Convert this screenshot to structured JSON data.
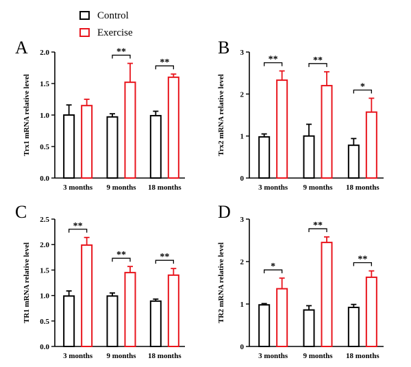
{
  "legend": [
    {
      "label": "Control",
      "color": "#000000"
    },
    {
      "label": "Exercise",
      "color": "#e8141c"
    }
  ],
  "chart_data": [
    {
      "panel": "A",
      "type": "bar",
      "ylabel": "Trx1 mRNA relative level",
      "categories": [
        "3 months",
        "9 months",
        "18 months"
      ],
      "ylim": [
        0,
        2.0
      ],
      "yticks": [
        0.0,
        0.5,
        1.0,
        1.5,
        2.0
      ],
      "series": [
        {
          "name": "Control",
          "values": [
            1.0,
            0.97,
            0.99
          ],
          "errors": [
            0.16,
            0.05,
            0.07
          ]
        },
        {
          "name": "Exercise",
          "values": [
            1.15,
            1.52,
            1.6
          ],
          "errors": [
            0.1,
            0.3,
            0.05
          ]
        }
      ],
      "significance": [
        "",
        "**",
        "**"
      ]
    },
    {
      "panel": "B",
      "type": "bar",
      "ylabel": "Trx2 mRNA relative level",
      "categories": [
        "3 months",
        "9 months",
        "18 months"
      ],
      "ylim": [
        0,
        3
      ],
      "yticks": [
        0,
        1,
        2,
        3
      ],
      "series": [
        {
          "name": "Control",
          "values": [
            0.98,
            1.0,
            0.78
          ],
          "errors": [
            0.07,
            0.28,
            0.16
          ]
        },
        {
          "name": "Exercise",
          "values": [
            2.33,
            2.2,
            1.57
          ],
          "errors": [
            0.22,
            0.33,
            0.33
          ]
        }
      ],
      "significance": [
        "**",
        "**",
        "*"
      ]
    },
    {
      "panel": "C",
      "type": "bar",
      "ylabel": "TR1 mRNA relative level",
      "categories": [
        "3 months",
        "9 months",
        "18 months"
      ],
      "ylim": [
        0,
        2.5
      ],
      "yticks": [
        0.0,
        0.5,
        1.0,
        1.5,
        2.0,
        2.5
      ],
      "series": [
        {
          "name": "Control",
          "values": [
            0.99,
            0.99,
            0.89
          ],
          "errors": [
            0.1,
            0.06,
            0.04
          ]
        },
        {
          "name": "Exercise",
          "values": [
            1.99,
            1.45,
            1.4
          ],
          "errors": [
            0.15,
            0.12,
            0.13
          ]
        }
      ],
      "significance": [
        "**",
        "**",
        "**"
      ]
    },
    {
      "panel": "D",
      "type": "bar",
      "ylabel": "TR2 mRNA relative level",
      "categories": [
        "3 months",
        "9 months",
        "18 months"
      ],
      "ylim": [
        0,
        3
      ],
      "yticks": [
        0,
        1,
        2,
        3
      ],
      "series": [
        {
          "name": "Control",
          "values": [
            0.98,
            0.86,
            0.92
          ],
          "errors": [
            0.03,
            0.1,
            0.07
          ]
        },
        {
          "name": "Exercise",
          "values": [
            1.36,
            2.45,
            1.63
          ],
          "errors": [
            0.25,
            0.13,
            0.15
          ]
        }
      ],
      "significance": [
        "*",
        "**",
        "**"
      ]
    }
  ]
}
